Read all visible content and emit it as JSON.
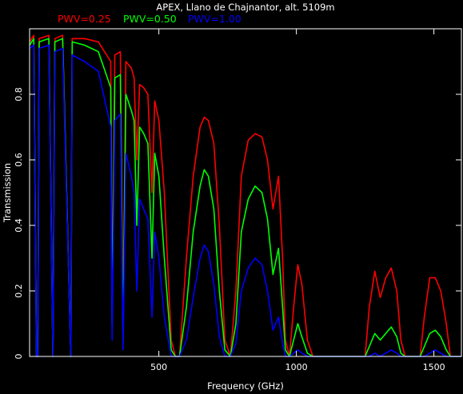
{
  "chart_data": {
    "type": "line",
    "title": "APEX, Llano de Chajnantor, alt. 5109m",
    "xlabel": "Frequency (GHz)",
    "ylabel": "Transmission",
    "xlim": [
      30,
      1600
    ],
    "ylim": [
      0,
      1.0
    ],
    "x_ticks": [
      500,
      1000,
      1500
    ],
    "y_ticks": [
      0,
      0.2,
      0.4,
      0.6,
      0.8
    ],
    "grid": false,
    "legend_position": "top-left",
    "background": "#000000",
    "axis_color": "#ffffff",
    "series": [
      {
        "name": "PWV=0.25",
        "color": "#ff0000",
        "points": [
          [
            30,
            0.96
          ],
          [
            45,
            0.98
          ],
          [
            55,
            0.0
          ],
          [
            60,
            0.0
          ],
          [
            65,
            0.97
          ],
          [
            100,
            0.98
          ],
          [
            115,
            0.0
          ],
          [
            122,
            0.97
          ],
          [
            150,
            0.98
          ],
          [
            180,
            0.0
          ],
          [
            185,
            0.97
          ],
          [
            230,
            0.97
          ],
          [
            280,
            0.96
          ],
          [
            325,
            0.9
          ],
          [
            330,
            0.15
          ],
          [
            340,
            0.92
          ],
          [
            360,
            0.93
          ],
          [
            370,
            0.1
          ],
          [
            380,
            0.9
          ],
          [
            400,
            0.88
          ],
          [
            410,
            0.85
          ],
          [
            420,
            0.6
          ],
          [
            430,
            0.83
          ],
          [
            445,
            0.82
          ],
          [
            460,
            0.8
          ],
          [
            475,
            0.5
          ],
          [
            485,
            0.78
          ],
          [
            500,
            0.72
          ],
          [
            520,
            0.5
          ],
          [
            545,
            0.05
          ],
          [
            560,
            0.0
          ],
          [
            575,
            0.0
          ],
          [
            600,
            0.3
          ],
          [
            625,
            0.55
          ],
          [
            650,
            0.7
          ],
          [
            665,
            0.73
          ],
          [
            680,
            0.72
          ],
          [
            700,
            0.65
          ],
          [
            720,
            0.4
          ],
          [
            740,
            0.05
          ],
          [
            760,
            0.0
          ],
          [
            780,
            0.2
          ],
          [
            800,
            0.55
          ],
          [
            825,
            0.66
          ],
          [
            850,
            0.68
          ],
          [
            875,
            0.67
          ],
          [
            895,
            0.6
          ],
          [
            915,
            0.45
          ],
          [
            935,
            0.55
          ],
          [
            950,
            0.3
          ],
          [
            960,
            0.05
          ],
          [
            975,
            0.0
          ],
          [
            990,
            0.15
          ],
          [
            1005,
            0.28
          ],
          [
            1020,
            0.22
          ],
          [
            1040,
            0.05
          ],
          [
            1060,
            0.0
          ],
          [
            1100,
            0.0
          ],
          [
            1200,
            0.0
          ],
          [
            1250,
            0.0
          ],
          [
            1265,
            0.15
          ],
          [
            1285,
            0.26
          ],
          [
            1305,
            0.18
          ],
          [
            1325,
            0.24
          ],
          [
            1345,
            0.27
          ],
          [
            1365,
            0.2
          ],
          [
            1380,
            0.05
          ],
          [
            1395,
            0.0
          ],
          [
            1450,
            0.0
          ],
          [
            1465,
            0.12
          ],
          [
            1485,
            0.24
          ],
          [
            1505,
            0.24
          ],
          [
            1525,
            0.2
          ],
          [
            1545,
            0.1
          ],
          [
            1560,
            0.0
          ],
          [
            1600,
            0.0
          ]
        ]
      },
      {
        "name": "PWV=0.50",
        "color": "#00ff00",
        "points": [
          [
            30,
            0.95
          ],
          [
            45,
            0.97
          ],
          [
            55,
            0.0
          ],
          [
            60,
            0.0
          ],
          [
            65,
            0.96
          ],
          [
            100,
            0.97
          ],
          [
            115,
            0.0
          ],
          [
            122,
            0.96
          ],
          [
            150,
            0.97
          ],
          [
            180,
            0.0
          ],
          [
            185,
            0.96
          ],
          [
            230,
            0.95
          ],
          [
            280,
            0.93
          ],
          [
            325,
            0.82
          ],
          [
            330,
            0.1
          ],
          [
            340,
            0.85
          ],
          [
            360,
            0.86
          ],
          [
            370,
            0.05
          ],
          [
            380,
            0.8
          ],
          [
            400,
            0.75
          ],
          [
            410,
            0.72
          ],
          [
            420,
            0.4
          ],
          [
            430,
            0.7
          ],
          [
            445,
            0.68
          ],
          [
            460,
            0.65
          ],
          [
            475,
            0.3
          ],
          [
            485,
            0.62
          ],
          [
            500,
            0.55
          ],
          [
            520,
            0.3
          ],
          [
            545,
            0.02
          ],
          [
            560,
            0.0
          ],
          [
            575,
            0.0
          ],
          [
            600,
            0.15
          ],
          [
            625,
            0.38
          ],
          [
            650,
            0.52
          ],
          [
            665,
            0.57
          ],
          [
            680,
            0.55
          ],
          [
            700,
            0.45
          ],
          [
            720,
            0.2
          ],
          [
            740,
            0.02
          ],
          [
            760,
            0.0
          ],
          [
            780,
            0.1
          ],
          [
            800,
            0.38
          ],
          [
            825,
            0.48
          ],
          [
            850,
            0.52
          ],
          [
            875,
            0.5
          ],
          [
            895,
            0.42
          ],
          [
            915,
            0.25
          ],
          [
            935,
            0.33
          ],
          [
            950,
            0.15
          ],
          [
            960,
            0.02
          ],
          [
            975,
            0.0
          ],
          [
            990,
            0.05
          ],
          [
            1005,
            0.1
          ],
          [
            1020,
            0.06
          ],
          [
            1040,
            0.01
          ],
          [
            1060,
            0.0
          ],
          [
            1100,
            0.0
          ],
          [
            1200,
            0.0
          ],
          [
            1250,
            0.0
          ],
          [
            1265,
            0.03
          ],
          [
            1285,
            0.07
          ],
          [
            1305,
            0.05
          ],
          [
            1325,
            0.07
          ],
          [
            1345,
            0.09
          ],
          [
            1365,
            0.06
          ],
          [
            1380,
            0.01
          ],
          [
            1395,
            0.0
          ],
          [
            1450,
            0.0
          ],
          [
            1465,
            0.03
          ],
          [
            1485,
            0.07
          ],
          [
            1505,
            0.08
          ],
          [
            1525,
            0.06
          ],
          [
            1545,
            0.02
          ],
          [
            1560,
            0.0
          ],
          [
            1600,
            0.0
          ]
        ]
      },
      {
        "name": "PWV=1.00",
        "color": "#0000ff",
        "points": [
          [
            30,
            0.94
          ],
          [
            45,
            0.95
          ],
          [
            55,
            0.0
          ],
          [
            60,
            0.0
          ],
          [
            65,
            0.94
          ],
          [
            100,
            0.95
          ],
          [
            115,
            0.0
          ],
          [
            122,
            0.93
          ],
          [
            150,
            0.94
          ],
          [
            180,
            0.0
          ],
          [
            185,
            0.92
          ],
          [
            230,
            0.9
          ],
          [
            280,
            0.87
          ],
          [
            325,
            0.7
          ],
          [
            330,
            0.05
          ],
          [
            340,
            0.72
          ],
          [
            360,
            0.74
          ],
          [
            370,
            0.02
          ],
          [
            380,
            0.62
          ],
          [
            400,
            0.55
          ],
          [
            410,
            0.5
          ],
          [
            420,
            0.2
          ],
          [
            430,
            0.48
          ],
          [
            445,
            0.45
          ],
          [
            460,
            0.42
          ],
          [
            475,
            0.12
          ],
          [
            485,
            0.38
          ],
          [
            500,
            0.3
          ],
          [
            520,
            0.12
          ],
          [
            545,
            0.0
          ],
          [
            560,
            0.0
          ],
          [
            575,
            0.0
          ],
          [
            600,
            0.05
          ],
          [
            625,
            0.18
          ],
          [
            650,
            0.3
          ],
          [
            665,
            0.34
          ],
          [
            680,
            0.32
          ],
          [
            700,
            0.22
          ],
          [
            720,
            0.06
          ],
          [
            740,
            0.0
          ],
          [
            760,
            0.0
          ],
          [
            780,
            0.04
          ],
          [
            800,
            0.2
          ],
          [
            825,
            0.27
          ],
          [
            850,
            0.3
          ],
          [
            875,
            0.28
          ],
          [
            895,
            0.2
          ],
          [
            915,
            0.08
          ],
          [
            935,
            0.12
          ],
          [
            950,
            0.04
          ],
          [
            960,
            0.0
          ],
          [
            975,
            0.0
          ],
          [
            990,
            0.01
          ],
          [
            1005,
            0.02
          ],
          [
            1020,
            0.01
          ],
          [
            1040,
            0.0
          ],
          [
            1060,
            0.0
          ],
          [
            1100,
            0.0
          ],
          [
            1200,
            0.0
          ],
          [
            1250,
            0.0
          ],
          [
            1265,
            0.0
          ],
          [
            1285,
            0.01
          ],
          [
            1305,
            0.0
          ],
          [
            1325,
            0.01
          ],
          [
            1345,
            0.02
          ],
          [
            1365,
            0.01
          ],
          [
            1380,
            0.0
          ],
          [
            1395,
            0.0
          ],
          [
            1450,
            0.0
          ],
          [
            1465,
            0.0
          ],
          [
            1485,
            0.01
          ],
          [
            1505,
            0.02
          ],
          [
            1525,
            0.01
          ],
          [
            1545,
            0.0
          ],
          [
            1560,
            0.0
          ],
          [
            1600,
            0.0
          ]
        ]
      }
    ]
  }
}
